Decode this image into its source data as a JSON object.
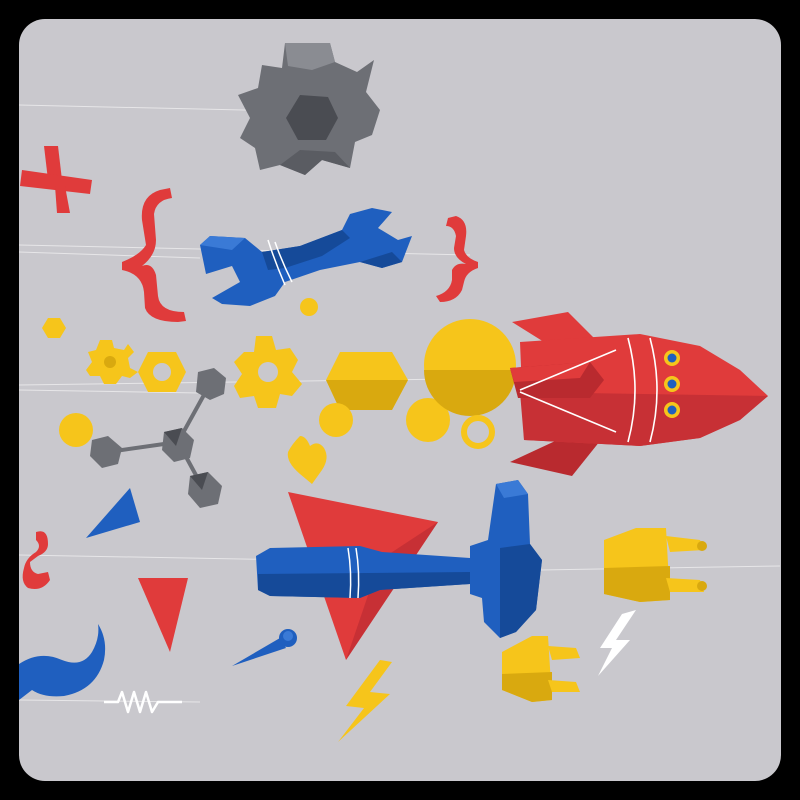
{
  "scene": {
    "description_objects": [
      "gear-icon",
      "plus-icon",
      "curly-brace-icon",
      "wrench-icon",
      "rocket-icon",
      "molecule-icon",
      "hammer-icon",
      "plug-icon",
      "lightning-icon",
      "triangle-icon",
      "resistor-icon",
      "heart-icon",
      "hexagon-icon",
      "mustache-icon",
      "pin-icon"
    ]
  },
  "colors": {
    "background": "#c9c8cd",
    "frame": "#000000",
    "red": "#e03b3b",
    "red_dark": "#b92a2f",
    "blue": "#1f5fbf",
    "blue_dark": "#154a99",
    "yellow": "#f6c51b",
    "yellow_dark": "#d9a90f",
    "gray": "#6d6f75",
    "gray_dark": "#4a4c52",
    "white": "#ffffff"
  }
}
